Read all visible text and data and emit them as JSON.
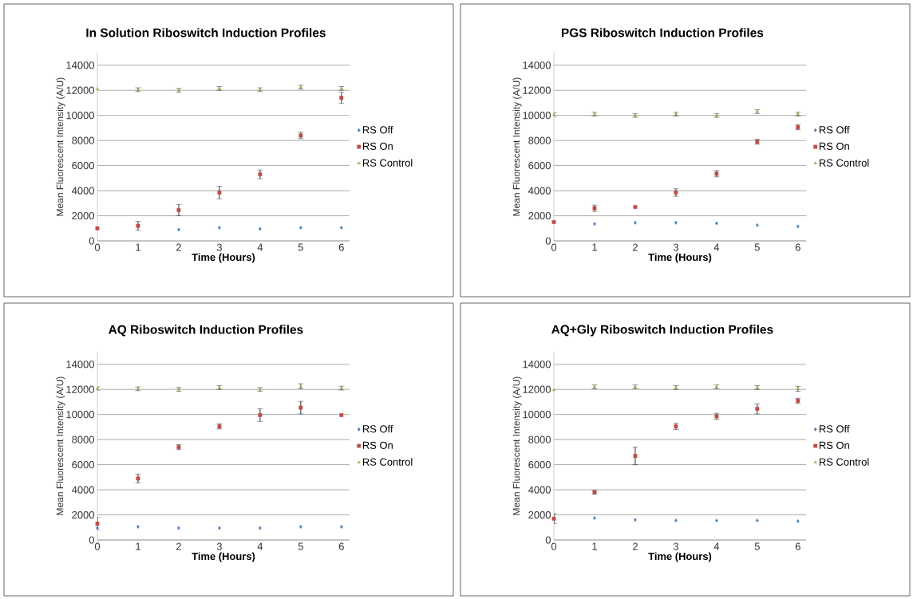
{
  "chart_data": [
    {
      "type": "scatter",
      "title": "In Solution Riboswitch Induction Profiles",
      "xlabel": "Time (Hours)",
      "ylabel": "Mean Fluorescent Intensity (A/U)",
      "x": [
        0,
        1,
        2,
        3,
        4,
        5,
        6
      ],
      "xlim": [
        0,
        6.2
      ],
      "xticks": [
        0,
        1,
        2,
        3,
        4,
        5,
        6
      ],
      "ylim": [
        0,
        15000
      ],
      "yticks": [
        0,
        2000,
        4000,
        6000,
        8000,
        10000,
        12000,
        14000
      ],
      "grid": "y",
      "legend": "right",
      "series": [
        {
          "name": "RS Off",
          "color": "#4a7ebb",
          "marker": "diamond",
          "values": [
            null,
            null,
            900,
            1050,
            950,
            1050,
            1050
          ]
        },
        {
          "name": "RS On",
          "color": "#be4b48",
          "marker": "square",
          "values": [
            1000,
            1200,
            2450,
            3850,
            5300,
            8400,
            11400
          ],
          "errors": [
            null,
            350,
            450,
            500,
            350,
            250,
            450
          ]
        },
        {
          "name": "RS Control",
          "color": "#98b954",
          "marker": "triangle",
          "values": [
            12100,
            12050,
            12000,
            12150,
            12050,
            12250,
            12150
          ],
          "errors": [
            null,
            150,
            150,
            150,
            150,
            150,
            150
          ]
        }
      ]
    },
    {
      "type": "scatter",
      "title": "PGS Riboswitch Induction Profiles",
      "xlabel": "Time (Hours)",
      "ylabel": "Mean Fluorescent Intensity (A/U)",
      "x": [
        0,
        1,
        2,
        3,
        4,
        5,
        6
      ],
      "xlim": [
        0,
        6.2
      ],
      "xticks": [
        0,
        1,
        2,
        3,
        4,
        5,
        6
      ],
      "ylim": [
        0,
        15000
      ],
      "yticks": [
        0,
        2000,
        4000,
        6000,
        8000,
        10000,
        12000,
        14000
      ],
      "grid": "y",
      "legend": "right",
      "series": [
        {
          "name": "RS Off",
          "color": "#4a7ebb",
          "marker": "diamond",
          "values": [
            null,
            1350,
            1450,
            1450,
            1400,
            1250,
            1150
          ]
        },
        {
          "name": "RS On",
          "color": "#be4b48",
          "marker": "square",
          "values": [
            1500,
            2600,
            2700,
            3850,
            5350,
            7900,
            9050
          ],
          "errors": [
            null,
            250,
            null,
            300,
            250,
            200,
            200
          ]
        },
        {
          "name": "RS Control",
          "color": "#98b954",
          "marker": "triangle",
          "values": [
            10050,
            10100,
            10000,
            10100,
            10000,
            10300,
            10100
          ],
          "errors": [
            150,
            150,
            150,
            150,
            150,
            150,
            150
          ]
        }
      ]
    },
    {
      "type": "scatter",
      "title": "AQ Riboswitch Induction Profiles",
      "xlabel": "Time (Hours)",
      "ylabel": "Mean Fluorescent Intensity (A/U)",
      "x": [
        0,
        1,
        2,
        3,
        4,
        5,
        6
      ],
      "xlim": [
        0,
        6.2
      ],
      "xticks": [
        0,
        1,
        2,
        3,
        4,
        5,
        6
      ],
      "ylim": [
        0,
        15000
      ],
      "yticks": [
        0,
        2000,
        4000,
        6000,
        8000,
        10000,
        12000,
        14000
      ],
      "grid": "y",
      "legend": "right",
      "series": [
        {
          "name": "RS Off",
          "color": "#4a7ebb",
          "marker": "diamond",
          "values": [
            950,
            1050,
            950,
            950,
            950,
            1050,
            1050
          ]
        },
        {
          "name": "RS On",
          "color": "#be4b48",
          "marker": "square",
          "values": [
            1300,
            4900,
            7400,
            9050,
            9950,
            10550,
            9950
          ],
          "errors": [
            500,
            350,
            200,
            200,
            500,
            500,
            null
          ]
        },
        {
          "name": "RS Control",
          "color": "#98b954",
          "marker": "triangle",
          "values": [
            12050,
            12050,
            12000,
            12150,
            12000,
            12250,
            12100
          ],
          "errors": [
            150,
            150,
            150,
            150,
            150,
            200,
            150
          ]
        }
      ]
    },
    {
      "type": "scatter",
      "title": "AQ+Gly Riboswitch Induction Profiles",
      "xlabel": "Time (Hours)",
      "ylabel": "Mean Fluorescent Intensity (A/U)",
      "x": [
        0,
        1,
        2,
        3,
        4,
        5,
        6
      ],
      "xlim": [
        0,
        6.2
      ],
      "xticks": [
        0,
        1,
        2,
        3,
        4,
        5,
        6
      ],
      "ylim": [
        0,
        15000
      ],
      "yticks": [
        0,
        2000,
        4000,
        6000,
        8000,
        10000,
        12000,
        14000
      ],
      "grid": "y",
      "legend": "right",
      "series": [
        {
          "name": "RS Off",
          "color": "#4a7ebb",
          "marker": "diamond",
          "values": [
            null,
            1750,
            1600,
            1550,
            1550,
            1550,
            1500
          ]
        },
        {
          "name": "RS On",
          "color": "#be4b48",
          "marker": "square",
          "values": [
            1700,
            3800,
            6700,
            9050,
            9850,
            10450,
            11100
          ],
          "errors": [
            400,
            150,
            700,
            250,
            250,
            400,
            200
          ]
        },
        {
          "name": "RS Control",
          "color": "#98b954",
          "marker": "triangle",
          "values": [
            11950,
            12200,
            12200,
            12150,
            12200,
            12150,
            12050
          ],
          "errors": [
            null,
            150,
            150,
            150,
            150,
            150,
            200
          ]
        }
      ]
    }
  ]
}
